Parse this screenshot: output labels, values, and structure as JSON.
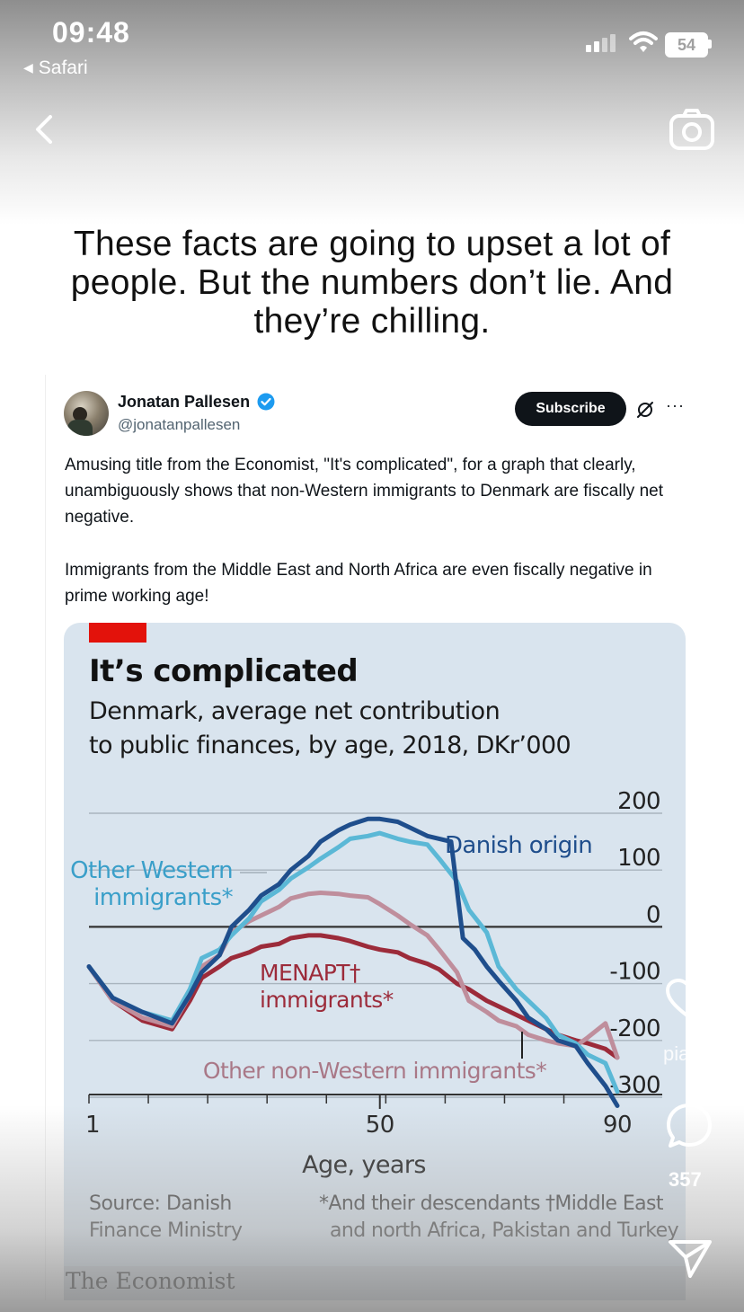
{
  "status_bar": {
    "time": "09:48",
    "back_app": "Safari",
    "battery": "54"
  },
  "headline": "These facts are going to upset a lot of people. But the numbers don’t lie. And they’re chilling.",
  "tweet": {
    "author_name": "Jonatan Pallesen",
    "handle": "@jonatanpallesen",
    "subscribe_label": "Subscribe",
    "more_label": "···",
    "paragraph1": "Amusing title from the Economist, \"It's complicated\", for a graph that clearly, unambiguously shows that non-Western immigrants to Denmark are fiscally net negative.",
    "paragraph2": "Immigrants from the Middle East and North Africa are even fiscally negative in prime working age!"
  },
  "economist": {
    "title": "It’s complicated",
    "subtitle_line1": "Denmark, average net contribution",
    "subtitle_line2": "to public finances, by age, 2018, DKr’000",
    "source_line1": "Source: Danish",
    "source_line2": "Finance Ministry",
    "footnote1": "*And their descendants",
    "footnote2": "†Middle East",
    "footnote3": "and north Africa, Pakistan and Turkey",
    "brand": "The Economist"
  },
  "chart_data": {
    "type": "line",
    "title": "It’s complicated",
    "subtitle": "Denmark, average net contribution to public finances, by age, 2018, DKr’000",
    "xlabel": "Age, years",
    "ylabel": "",
    "x_tick_labels": [
      "1",
      "50",
      "90"
    ],
    "y_tick_labels": [
      "200",
      "100",
      "0",
      "-100",
      "-200",
      "-300"
    ],
    "xlim": [
      1,
      90
    ],
    "ylim": [
      -300,
      200
    ],
    "grid": true,
    "series": [
      {
        "name": "Danish origin",
        "color": "#1f4e8c",
        "x": [
          1,
          5,
          10,
          15,
          18,
          20,
          23,
          25,
          28,
          30,
          33,
          35,
          38,
          40,
          43,
          45,
          48,
          50,
          53,
          55,
          58,
          60,
          62,
          64,
          66,
          68,
          70,
          73,
          75,
          78,
          80,
          83,
          85,
          88,
          90
        ],
        "y": [
          -70,
          -125,
          -150,
          -170,
          -120,
          -80,
          -50,
          0,
          30,
          55,
          75,
          100,
          125,
          150,
          170,
          180,
          190,
          190,
          185,
          175,
          160,
          155,
          150,
          -20,
          -40,
          -70,
          -95,
          -130,
          -160,
          -180,
          -200,
          -210,
          -240,
          -280,
          -315
        ]
      },
      {
        "name": "Other Western immigrants*",
        "color": "#5bb8d6",
        "x": [
          1,
          5,
          10,
          15,
          18,
          20,
          23,
          25,
          28,
          30,
          33,
          35,
          38,
          40,
          43,
          45,
          48,
          50,
          53,
          55,
          58,
          60,
          63,
          65,
          68,
          70,
          73,
          75,
          78,
          80,
          83,
          85,
          88,
          90
        ],
        "y": [
          -70,
          -125,
          -150,
          -165,
          -110,
          -55,
          -40,
          -15,
          15,
          45,
          65,
          85,
          105,
          120,
          140,
          155,
          160,
          165,
          155,
          150,
          145,
          120,
          80,
          30,
          -10,
          -70,
          -110,
          -130,
          -160,
          -190,
          -205,
          -225,
          -240,
          -290
        ]
      },
      {
        "name": "Other non-Western immigrants*",
        "color": "#bf8e9c",
        "x": [
          1,
          5,
          10,
          15,
          18,
          20,
          23,
          25,
          28,
          30,
          33,
          35,
          38,
          40,
          43,
          45,
          48,
          50,
          53,
          55,
          58,
          60,
          63,
          65,
          68,
          70,
          73,
          75,
          78,
          80,
          83,
          85,
          88,
          90
        ],
        "y": [
          -70,
          -130,
          -160,
          -175,
          -120,
          -70,
          -50,
          -10,
          10,
          20,
          35,
          50,
          58,
          60,
          58,
          55,
          52,
          40,
          20,
          5,
          -15,
          -40,
          -80,
          -130,
          -150,
          -165,
          -175,
          -190,
          -200,
          -205,
          -210,
          -195,
          -170,
          -230
        ]
      },
      {
        "name": "MENAPT† immigrants*",
        "color": "#9c2b3a",
        "x": [
          1,
          5,
          10,
          15,
          18,
          20,
          23,
          25,
          28,
          30,
          33,
          35,
          38,
          40,
          43,
          45,
          48,
          50,
          53,
          55,
          58,
          60,
          63,
          65,
          68,
          70,
          73,
          75,
          78,
          80,
          83,
          85,
          88,
          90
        ],
        "y": [
          -70,
          -130,
          -165,
          -180,
          -130,
          -90,
          -70,
          -55,
          -45,
          -35,
          -30,
          -20,
          -15,
          -15,
          -20,
          -25,
          -35,
          -40,
          -45,
          -55,
          -65,
          -75,
          -100,
          -110,
          -130,
          -140,
          -155,
          -165,
          -180,
          -190,
          -200,
          -205,
          -215,
          -230
        ]
      }
    ],
    "annotations": [
      "Danish origin",
      "Other Western immigrants*",
      "MENAPT† immigrants*",
      "Other non-Western immigrants*"
    ]
  },
  "side_actions": {
    "comment_count": "357",
    "overlay_text": "pia"
  },
  "colors": {
    "economist_bg": "#d9e4ee",
    "economist_red": "#e3120b",
    "subscribe_bg": "#0f1419",
    "verified_blue": "#1d9bf0"
  }
}
